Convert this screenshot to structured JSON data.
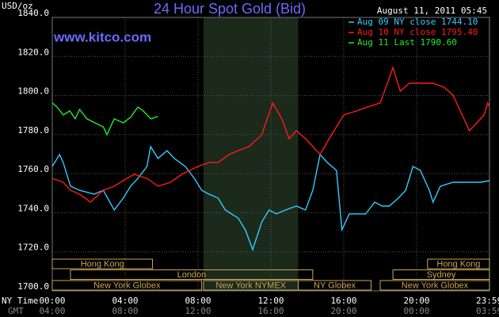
{
  "chart_data": {
    "type": "line",
    "title": "24 Hour Spot Gold (Bid)",
    "unit_label": "USD/oz",
    "timestamp": "August 11, 2011 05:45",
    "website": "www.kitco.com",
    "x_row_labels": [
      "NY Time",
      "GMT"
    ],
    "xlim": [
      0,
      24
    ],
    "ylim": [
      1700,
      1840
    ],
    "grid": true,
    "xticks": [
      {
        "value": 0,
        "label": "00:00"
      },
      {
        "value": 4,
        "label": "04:00"
      },
      {
        "value": 8,
        "label": "08:00"
      },
      {
        "value": 12,
        "label": "12:00"
      },
      {
        "value": 16,
        "label": "16:00"
      },
      {
        "value": 20,
        "label": "20:00"
      },
      {
        "value": 23.98,
        "label": "23:59"
      }
    ],
    "gmt_labels": [
      "04:00",
      "08:00",
      "12:00",
      "16:00",
      "20:00",
      "00:00",
      "03:59"
    ],
    "yticks": [
      {
        "value": 1700,
        "label": "1700.0"
      },
      {
        "value": 1720,
        "label": "1720.0"
      },
      {
        "value": 1740,
        "label": "1740.0"
      },
      {
        "value": 1760,
        "label": "1760.0"
      },
      {
        "value": 1780,
        "label": "1780.0"
      },
      {
        "value": 1800,
        "label": "1800.0"
      },
      {
        "value": 1820,
        "label": "1820.0"
      },
      {
        "value": 1840,
        "label": "1840.0"
      }
    ],
    "sessions": [
      [
        {
          "name": "Hong Kong",
          "start": 0,
          "end": 5.5
        },
        {
          "name": "Hong Kong",
          "start": 20.6,
          "end": 24
        }
      ],
      [
        {
          "name": "London",
          "start": 1.0,
          "end": 14.3
        },
        {
          "name": "Sydney",
          "start": 18.7,
          "end": 24
        }
      ],
      [
        {
          "name": "New York Globex",
          "start": 0,
          "end": 8.2
        },
        {
          "name": "New York NYMEX",
          "start": 8.3,
          "end": 13.5,
          "shade": true
        },
        {
          "name": "NY Globex",
          "start": 13.5,
          "end": 17.5
        },
        {
          "name": "New York Globex",
          "start": 18.0,
          "end": 24
        }
      ]
    ],
    "series": [
      {
        "name": "Aug 09 NY close 1744.10",
        "color": "#33ccff",
        "x": [
          0,
          0.4,
          0.6,
          1.0,
          1.5,
          2.3,
          2.8,
          3.4,
          3.9,
          4.3,
          4.7,
          5.2,
          5.4,
          5.8,
          6.3,
          6.7,
          7.3,
          7.8,
          8.2,
          8.6,
          9.1,
          9.5,
          10.2,
          10.6,
          11.0,
          11.5,
          11.9,
          12.3,
          12.8,
          13.4,
          13.9,
          14.3,
          14.7,
          15.1,
          15.6,
          15.9,
          16.3,
          17.2,
          17.7,
          18.1,
          18.5,
          19.0,
          19.4,
          19.8,
          20.2,
          20.7,
          20.9,
          21.3,
          22.0,
          22.9,
          23.5,
          24.0
        ],
        "values": [
          1763.7,
          1769.8,
          1765.7,
          1753.6,
          1751.5,
          1749.5,
          1751.5,
          1741.4,
          1747.5,
          1753.6,
          1757.6,
          1763.7,
          1773.9,
          1767.8,
          1771.8,
          1767.8,
          1763.7,
          1757.6,
          1751.5,
          1749.5,
          1747.5,
          1741.4,
          1737.3,
          1731.2,
          1721.1,
          1735.3,
          1741.4,
          1739.4,
          1741.4,
          1743.4,
          1741.4,
          1751.5,
          1769.8,
          1765.7,
          1761.7,
          1731.2,
          1739.4,
          1739.4,
          1745.4,
          1743.4,
          1743.4,
          1747.5,
          1751.5,
          1763.7,
          1761.7,
          1751.5,
          1745.4,
          1753.6,
          1755.6,
          1755.6,
          1755.6,
          1756.4
        ]
      },
      {
        "name": "Aug 10 NY close 1795.40",
        "color": "#ff1a1a",
        "x": [
          0,
          0.6,
          1.0,
          1.5,
          2.1,
          2.8,
          3.4,
          4.1,
          4.5,
          5.2,
          5.8,
          6.5,
          7.1,
          8.0,
          8.6,
          9.1,
          9.7,
          10.2,
          10.8,
          11.5,
          12.1,
          12.6,
          13.0,
          13.4,
          13.9,
          14.3,
          14.7,
          15.2,
          15.6,
          16.0,
          16.7,
          17.3,
          18.0,
          18.4,
          18.7,
          19.1,
          19.6,
          20.2,
          20.9,
          21.5,
          22.0,
          22.4,
          22.9,
          23.3,
          23.7,
          23.9,
          24.0
        ],
        "values": [
          1757.6,
          1755.6,
          1751.5,
          1749.5,
          1745.4,
          1751.5,
          1753.6,
          1757.6,
          1759.7,
          1757.6,
          1753.6,
          1755.6,
          1759.7,
          1763.7,
          1765.7,
          1765.7,
          1769.8,
          1771.8,
          1773.9,
          1779.9,
          1796.2,
          1788.1,
          1777.9,
          1782.0,
          1777.9,
          1773.9,
          1769.8,
          1777.9,
          1784.0,
          1790.1,
          1792.1,
          1794.1,
          1796.2,
          1806.3,
          1814.4,
          1802.3,
          1806.3,
          1806.3,
          1806.3,
          1804.3,
          1800.2,
          1792.1,
          1782.0,
          1786.0,
          1790.1,
          1796.2,
          1794.1
        ]
      },
      {
        "name": "Aug 11 Last 1790.60",
        "color": "#22ee22",
        "x": [
          0,
          0.26,
          0.6,
          0.96,
          1.26,
          1.5,
          1.9,
          2.35,
          2.8,
          3.0,
          3.4,
          3.9,
          4.3,
          4.7,
          5.0,
          5.4,
          5.8
        ],
        "values": [
          1796.2,
          1794.1,
          1790.1,
          1792.1,
          1788.1,
          1792.9,
          1788.1,
          1786.0,
          1784.0,
          1779.9,
          1788.1,
          1786.0,
          1788.9,
          1794.1,
          1792.1,
          1788.1,
          1789.3
        ]
      }
    ]
  }
}
